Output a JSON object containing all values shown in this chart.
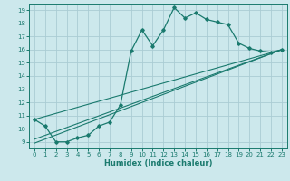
{
  "title": "",
  "xlabel": "Humidex (Indice chaleur)",
  "ylabel": "",
  "bg_color": "#cce8ec",
  "grid_color": "#aaccd4",
  "line_color": "#1a7a6e",
  "xlim": [
    -0.5,
    23.5
  ],
  "ylim": [
    8.5,
    19.5
  ],
  "xticks": [
    0,
    1,
    2,
    3,
    4,
    5,
    6,
    7,
    8,
    9,
    10,
    11,
    12,
    13,
    14,
    15,
    16,
    17,
    18,
    19,
    20,
    21,
    22,
    23
  ],
  "yticks": [
    9,
    10,
    11,
    12,
    13,
    14,
    15,
    16,
    17,
    18,
    19
  ],
  "curve_x": [
    0,
    1,
    2,
    3,
    4,
    5,
    6,
    7,
    8,
    9,
    10,
    11,
    12,
    13,
    14,
    15,
    16,
    17,
    18,
    19,
    20,
    21,
    22,
    23
  ],
  "curve_y": [
    10.7,
    10.2,
    9.0,
    9.0,
    9.3,
    9.5,
    10.2,
    10.5,
    11.8,
    15.9,
    17.5,
    16.3,
    17.5,
    19.2,
    18.4,
    18.8,
    18.3,
    18.1,
    17.9,
    16.5,
    16.1,
    15.9,
    15.8,
    16.0
  ],
  "line1_x": [
    0,
    23
  ],
  "line1_y": [
    10.7,
    16.0
  ],
  "line2_x": [
    0,
    23
  ],
  "line2_y": [
    9.2,
    16.0
  ],
  "line3_x": [
    0,
    23
  ],
  "line3_y": [
    8.9,
    16.0
  ]
}
